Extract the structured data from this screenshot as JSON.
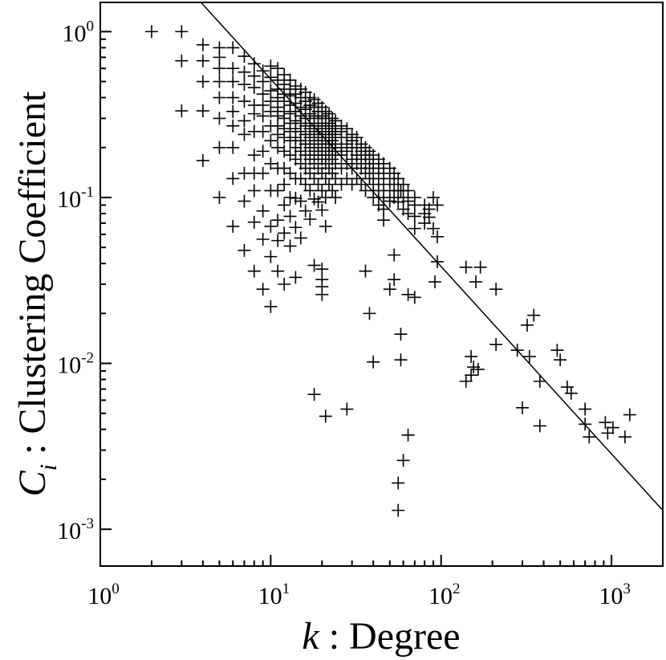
{
  "chart_data": {
    "type": "scatter",
    "xscale": "log",
    "yscale": "log",
    "xlim": [
      1,
      2000
    ],
    "ylim": [
      0.0006,
      1.5
    ],
    "xlabel": {
      "var": "k",
      "sep": " : ",
      "text": "Degree"
    },
    "ylabel": {
      "var": "C",
      "sub": "i",
      "sep": " : ",
      "text": "Clustering Coefficient"
    },
    "xticks": [
      {
        "value": 1,
        "base": "10",
        "exp": "0"
      },
      {
        "value": 10,
        "base": "10",
        "exp": "1"
      },
      {
        "value": 100,
        "base": "10",
        "exp": "2"
      },
      {
        "value": 1000,
        "base": "10",
        "exp": "3"
      }
    ],
    "yticks": [
      {
        "value": 1,
        "base": "10",
        "exp": "0"
      },
      {
        "value": 0.1,
        "base": "10",
        "exp": "-1"
      },
      {
        "value": 0.01,
        "base": "10",
        "exp": "-2"
      },
      {
        "value": 0.001,
        "base": "10",
        "exp": "-3"
      }
    ],
    "marker": "+",
    "grid": false,
    "fit_line": {
      "type": "power-law",
      "slope": -1,
      "points": [
        [
          3.9,
          1.5
        ],
        [
          2000,
          0.0013
        ]
      ]
    },
    "points": [
      [
        2,
        1.0
      ],
      [
        3,
        1.0
      ],
      [
        3,
        0.667
      ],
      [
        3,
        0.333
      ],
      [
        4,
        0.833
      ],
      [
        4,
        0.667
      ],
      [
        4,
        0.5
      ],
      [
        4,
        0.333
      ],
      [
        4,
        0.167
      ],
      [
        5,
        0.8
      ],
      [
        5,
        0.7
      ],
      [
        5,
        0.6
      ],
      [
        5,
        0.5
      ],
      [
        5,
        0.4
      ],
      [
        5,
        0.3
      ],
      [
        5,
        0.2
      ],
      [
        5,
        0.1
      ],
      [
        6,
        0.8
      ],
      [
        6,
        0.6
      ],
      [
        6,
        0.5
      ],
      [
        6,
        0.4
      ],
      [
        6,
        0.33
      ],
      [
        6,
        0.27
      ],
      [
        6,
        0.2
      ],
      [
        6,
        0.13
      ],
      [
        6,
        0.067
      ],
      [
        7,
        0.71
      ],
      [
        7,
        0.57
      ],
      [
        7,
        0.48
      ],
      [
        7,
        0.38
      ],
      [
        7,
        0.29
      ],
      [
        7,
        0.24
      ],
      [
        7,
        0.14
      ],
      [
        7,
        0.095
      ],
      [
        7,
        0.048
      ],
      [
        8,
        0.64
      ],
      [
        8,
        0.54
      ],
      [
        8,
        0.46
      ],
      [
        8,
        0.36
      ],
      [
        8,
        0.32
      ],
      [
        8,
        0.25
      ],
      [
        8,
        0.18
      ],
      [
        8,
        0.14
      ],
      [
        8,
        0.11
      ],
      [
        8,
        0.071
      ],
      [
        8,
        0.036
      ],
      [
        9,
        0.58
      ],
      [
        9,
        0.5
      ],
      [
        9,
        0.42
      ],
      [
        9,
        0.36
      ],
      [
        9,
        0.31
      ],
      [
        9,
        0.25
      ],
      [
        9,
        0.19
      ],
      [
        9,
        0.14
      ],
      [
        9,
        0.083
      ],
      [
        9,
        0.056
      ],
      [
        9,
        0.028
      ],
      [
        10,
        0.62
      ],
      [
        10,
        0.53
      ],
      [
        10,
        0.44
      ],
      [
        10,
        0.38
      ],
      [
        10,
        0.33
      ],
      [
        10,
        0.27
      ],
      [
        10,
        0.22
      ],
      [
        10,
        0.16
      ],
      [
        10,
        0.11
      ],
      [
        10,
        0.067
      ],
      [
        10,
        0.044
      ],
      [
        10,
        0.022
      ],
      [
        11,
        0.6
      ],
      [
        11,
        0.51
      ],
      [
        11,
        0.45
      ],
      [
        11,
        0.4
      ],
      [
        11,
        0.35
      ],
      [
        11,
        0.31
      ],
      [
        11,
        0.27
      ],
      [
        11,
        0.24
      ],
      [
        11,
        0.2
      ],
      [
        11,
        0.15
      ],
      [
        11,
        0.11
      ],
      [
        11,
        0.073
      ],
      [
        11,
        0.055
      ],
      [
        11,
        0.036
      ],
      [
        12,
        0.55
      ],
      [
        12,
        0.48
      ],
      [
        12,
        0.42
      ],
      [
        12,
        0.38
      ],
      [
        12,
        0.33
      ],
      [
        12,
        0.3
      ],
      [
        12,
        0.26
      ],
      [
        12,
        0.23
      ],
      [
        12,
        0.19
      ],
      [
        12,
        0.15
      ],
      [
        12,
        0.12
      ],
      [
        12,
        0.09
      ],
      [
        12,
        0.061
      ],
      [
        12,
        0.03
      ],
      [
        13,
        0.51
      ],
      [
        13,
        0.45
      ],
      [
        13,
        0.41
      ],
      [
        13,
        0.36
      ],
      [
        13,
        0.32
      ],
      [
        13,
        0.28
      ],
      [
        13,
        0.25
      ],
      [
        13,
        0.22
      ],
      [
        13,
        0.18
      ],
      [
        13,
        0.14
      ],
      [
        13,
        0.1
      ],
      [
        13,
        0.077
      ],
      [
        13,
        0.051
      ],
      [
        14,
        0.47
      ],
      [
        14,
        0.42
      ],
      [
        14,
        0.37
      ],
      [
        14,
        0.33
      ],
      [
        14,
        0.29
      ],
      [
        14,
        0.26
      ],
      [
        14,
        0.23
      ],
      [
        14,
        0.2
      ],
      [
        14,
        0.17
      ],
      [
        14,
        0.13
      ],
      [
        14,
        0.099
      ],
      [
        14,
        0.066
      ],
      [
        14,
        0.033
      ],
      [
        15,
        0.45
      ],
      [
        15,
        0.4
      ],
      [
        15,
        0.35
      ],
      [
        15,
        0.31
      ],
      [
        15,
        0.28
      ],
      [
        15,
        0.25
      ],
      [
        15,
        0.22
      ],
      [
        15,
        0.19
      ],
      [
        15,
        0.16
      ],
      [
        15,
        0.13
      ],
      [
        15,
        0.095
      ],
      [
        15,
        0.057
      ],
      [
        16,
        0.43
      ],
      [
        16,
        0.38
      ],
      [
        16,
        0.34
      ],
      [
        16,
        0.3
      ],
      [
        16,
        0.27
      ],
      [
        16,
        0.24
      ],
      [
        16,
        0.21
      ],
      [
        16,
        0.18
      ],
      [
        16,
        0.15
      ],
      [
        16,
        0.12
      ],
      [
        16,
        0.083
      ],
      [
        17,
        0.4
      ],
      [
        17,
        0.36
      ],
      [
        17,
        0.32
      ],
      [
        17,
        0.28
      ],
      [
        17,
        0.26
      ],
      [
        17,
        0.23
      ],
      [
        17,
        0.2
      ],
      [
        17,
        0.17
      ],
      [
        17,
        0.14
      ],
      [
        17,
        0.11
      ],
      [
        17,
        0.074
      ],
      [
        18,
        0.39
      ],
      [
        18,
        0.35
      ],
      [
        18,
        0.31
      ],
      [
        18,
        0.27
      ],
      [
        18,
        0.25
      ],
      [
        18,
        0.22
      ],
      [
        18,
        0.19
      ],
      [
        18,
        0.16
      ],
      [
        18,
        0.13
      ],
      [
        18,
        0.098
      ],
      [
        18,
        0.039
      ],
      [
        18,
        0.0065
      ],
      [
        19,
        0.37
      ],
      [
        19,
        0.33
      ],
      [
        19,
        0.3
      ],
      [
        19,
        0.26
      ],
      [
        19,
        0.24
      ],
      [
        19,
        0.21
      ],
      [
        19,
        0.18
      ],
      [
        19,
        0.15
      ],
      [
        19,
        0.12
      ],
      [
        19,
        0.094
      ],
      [
        20,
        0.35
      ],
      [
        20,
        0.31
      ],
      [
        20,
        0.28
      ],
      [
        20,
        0.25
      ],
      [
        20,
        0.23
      ],
      [
        20,
        0.2
      ],
      [
        20,
        0.17
      ],
      [
        20,
        0.14
      ],
      [
        20,
        0.11
      ],
      [
        20,
        0.084
      ],
      [
        20,
        0.037
      ],
      [
        20,
        0.032
      ],
      [
        20,
        0.029
      ],
      [
        20,
        0.026
      ],
      [
        21,
        0.33
      ],
      [
        21,
        0.3
      ],
      [
        21,
        0.27
      ],
      [
        21,
        0.24
      ],
      [
        21,
        0.22
      ],
      [
        21,
        0.19
      ],
      [
        21,
        0.16
      ],
      [
        21,
        0.13
      ],
      [
        21,
        0.1
      ],
      [
        21,
        0.067
      ],
      [
        21,
        0.0048
      ],
      [
        22,
        0.32
      ],
      [
        22,
        0.28
      ],
      [
        22,
        0.26
      ],
      [
        22,
        0.23
      ],
      [
        22,
        0.21
      ],
      [
        22,
        0.18
      ],
      [
        22,
        0.15
      ],
      [
        22,
        0.12
      ],
      [
        23,
        0.3
      ],
      [
        23,
        0.27
      ],
      [
        23,
        0.25
      ],
      [
        23,
        0.22
      ],
      [
        23,
        0.2
      ],
      [
        23,
        0.17
      ],
      [
        23,
        0.14
      ],
      [
        23,
        0.11
      ],
      [
        24,
        0.29
      ],
      [
        24,
        0.26
      ],
      [
        24,
        0.24
      ],
      [
        24,
        0.21
      ],
      [
        24,
        0.19
      ],
      [
        24,
        0.16
      ],
      [
        24,
        0.13
      ],
      [
        24,
        0.1
      ],
      [
        26,
        0.27
      ],
      [
        26,
        0.25
      ],
      [
        26,
        0.23
      ],
      [
        26,
        0.2
      ],
      [
        26,
        0.18
      ],
      [
        26,
        0.15
      ],
      [
        26,
        0.12
      ],
      [
        28,
        0.26
      ],
      [
        28,
        0.23
      ],
      [
        28,
        0.21
      ],
      [
        28,
        0.19
      ],
      [
        28,
        0.16
      ],
      [
        28,
        0.13
      ],
      [
        28,
        0.0053
      ],
      [
        30,
        0.24
      ],
      [
        30,
        0.22
      ],
      [
        30,
        0.2
      ],
      [
        30,
        0.17
      ],
      [
        30,
        0.15
      ],
      [
        30,
        0.12
      ],
      [
        32,
        0.23
      ],
      [
        32,
        0.2
      ],
      [
        32,
        0.18
      ],
      [
        32,
        0.16
      ],
      [
        32,
        0.13
      ],
      [
        34,
        0.21
      ],
      [
        34,
        0.19
      ],
      [
        34,
        0.17
      ],
      [
        34,
        0.15
      ],
      [
        34,
        0.12
      ],
      [
        36,
        0.2
      ],
      [
        36,
        0.18
      ],
      [
        36,
        0.16
      ],
      [
        36,
        0.14
      ],
      [
        36,
        0.11
      ],
      [
        36,
        0.036
      ],
      [
        38,
        0.19
      ],
      [
        38,
        0.17
      ],
      [
        38,
        0.15
      ],
      [
        38,
        0.13
      ],
      [
        38,
        0.02
      ],
      [
        40,
        0.18
      ],
      [
        40,
        0.16
      ],
      [
        40,
        0.14
      ],
      [
        40,
        0.12
      ],
      [
        40,
        0.1
      ],
      [
        40,
        0.0102
      ],
      [
        43,
        0.17
      ],
      [
        43,
        0.15
      ],
      [
        43,
        0.13
      ],
      [
        43,
        0.11
      ],
      [
        43,
        0.09
      ],
      [
        46,
        0.16
      ],
      [
        46,
        0.14
      ],
      [
        46,
        0.12
      ],
      [
        46,
        0.1
      ],
      [
        46,
        0.085
      ],
      [
        46,
        0.073
      ],
      [
        50,
        0.15
      ],
      [
        50,
        0.13
      ],
      [
        50,
        0.11
      ],
      [
        50,
        0.095
      ],
      [
        50,
        0.028
      ],
      [
        53,
        0.14
      ],
      [
        53,
        0.12
      ],
      [
        53,
        0.1
      ],
      [
        53,
        0.045
      ],
      [
        53,
        0.032
      ],
      [
        56,
        0.13
      ],
      [
        56,
        0.11
      ],
      [
        56,
        0.094
      ],
      [
        56,
        0.0019
      ],
      [
        56,
        0.0013
      ],
      [
        58,
        0.11
      ],
      [
        58,
        0.0105
      ],
      [
        58,
        0.015
      ],
      [
        60,
        0.12
      ],
      [
        60,
        0.1
      ],
      [
        60,
        0.085
      ],
      [
        60,
        0.0026
      ],
      [
        64,
        0.11
      ],
      [
        64,
        0.095
      ],
      [
        64,
        0.08
      ],
      [
        64,
        0.026
      ],
      [
        64,
        0.0037
      ],
      [
        70,
        0.1
      ],
      [
        70,
        0.09
      ],
      [
        70,
        0.077
      ],
      [
        70,
        0.065
      ],
      [
        70,
        0.025
      ],
      [
        80,
        0.09
      ],
      [
        80,
        0.08
      ],
      [
        80,
        0.07
      ],
      [
        85,
        0.085
      ],
      [
        85,
        0.076
      ],
      [
        90,
        0.1
      ],
      [
        90,
        0.065
      ],
      [
        92,
        0.031
      ],
      [
        95,
        0.041
      ],
      [
        95,
        0.09
      ],
      [
        95,
        0.058
      ],
      [
        140,
        0.038
      ],
      [
        140,
        0.0078
      ],
      [
        150,
        0.0085
      ],
      [
        150,
        0.011
      ],
      [
        155,
        0.0095
      ],
      [
        160,
        0.031
      ],
      [
        165,
        0.0092
      ],
      [
        170,
        0.038
      ],
      [
        210,
        0.028
      ],
      [
        210,
        0.013
      ],
      [
        280,
        0.012
      ],
      [
        300,
        0.0054
      ],
      [
        320,
        0.017
      ],
      [
        330,
        0.011
      ],
      [
        350,
        0.0195
      ],
      [
        380,
        0.0078
      ],
      [
        380,
        0.0042
      ],
      [
        480,
        0.012
      ],
      [
        500,
        0.0105
      ],
      [
        550,
        0.0072
      ],
      [
        580,
        0.0066
      ],
      [
        700,
        0.0053
      ],
      [
        700,
        0.0043
      ],
      [
        740,
        0.0036
      ],
      [
        920,
        0.0044
      ],
      [
        950,
        0.0038
      ],
      [
        1020,
        0.0041
      ],
      [
        1200,
        0.0036
      ],
      [
        1280,
        0.0049
      ]
    ]
  }
}
